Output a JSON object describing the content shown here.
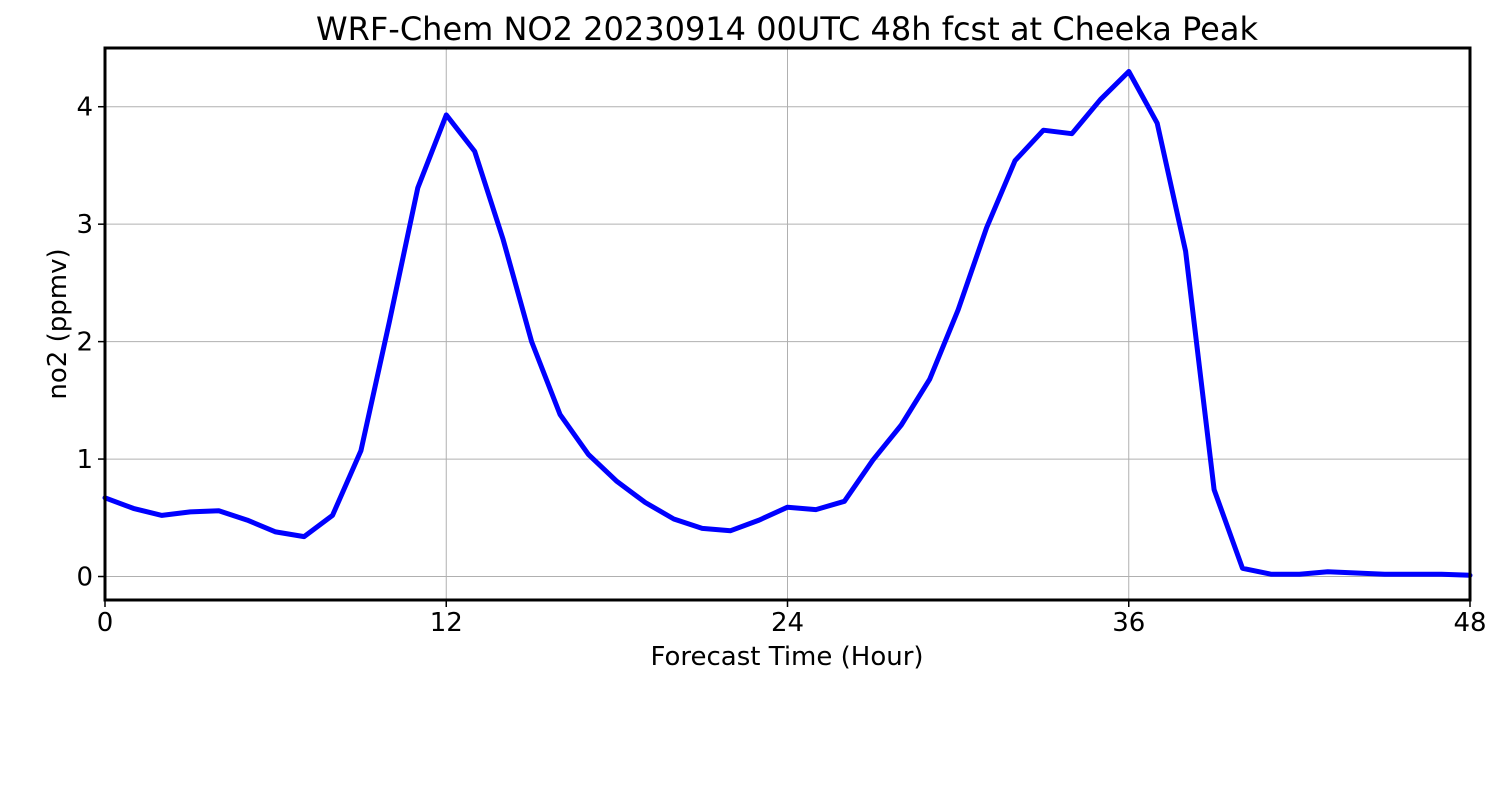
{
  "chart_data": {
    "type": "line",
    "title": "WRF-Chem NO2  20230914 00UTC 48h fcst at Cheeka Peak",
    "xlabel": "Forecast Time (Hour)",
    "ylabel": "no2  (ppmv)",
    "xlim": [
      0,
      48
    ],
    "ylim": [
      -0.2,
      4.5
    ],
    "xticks": [
      0,
      12,
      24,
      36,
      48
    ],
    "xtick_labels": [
      "0",
      "12",
      "24",
      "36",
      "48"
    ],
    "yticks": [
      0,
      1,
      2,
      3,
      4
    ],
    "ytick_labels": [
      "0",
      "1",
      "2",
      "3",
      "4"
    ],
    "grid": true,
    "legend": "none",
    "series": [
      {
        "color": "#0000ff",
        "x": [
          0,
          1,
          2,
          3,
          4,
          5,
          6,
          7,
          8,
          9,
          10,
          11,
          12,
          13,
          14,
          15,
          16,
          17,
          18,
          19,
          20,
          21,
          22,
          23,
          24,
          25,
          26,
          27,
          28,
          29,
          30,
          31,
          32,
          33,
          34,
          35,
          36,
          37,
          38,
          39,
          40,
          41,
          42,
          43,
          44,
          45,
          46,
          47,
          48
        ],
        "values": [
          0.67,
          0.58,
          0.52,
          0.55,
          0.56,
          0.48,
          0.38,
          0.34,
          0.52,
          1.07,
          2.17,
          3.31,
          3.93,
          3.62,
          2.87,
          2.0,
          1.38,
          1.04,
          0.81,
          0.63,
          0.49,
          0.41,
          0.39,
          0.48,
          0.59,
          0.57,
          0.64,
          0.99,
          1.29,
          1.68,
          2.27,
          2.97,
          3.54,
          3.8,
          3.77,
          4.06,
          4.3,
          3.86,
          2.77,
          0.74,
          0.07,
          0.02,
          0.02,
          0.04,
          0.03,
          0.02,
          0.02,
          0.02,
          0.01
        ]
      }
    ]
  }
}
